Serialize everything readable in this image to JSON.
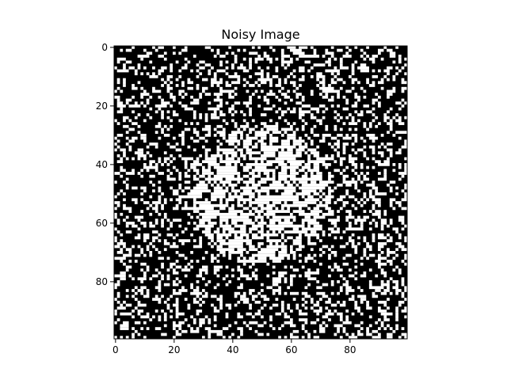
{
  "chart_data": {
    "type": "heatmap",
    "title": "Noisy Image",
    "xlabel": "",
    "ylabel": "",
    "rows": 100,
    "cols": 100,
    "colormap": [
      "#000000",
      "#ffffff"
    ],
    "value_range": [
      0,
      1
    ],
    "xlim": [
      -0.5,
      99.5
    ],
    "ylim": [
      99.5,
      -0.5
    ],
    "x_ticks": [
      0,
      20,
      40,
      60,
      80
    ],
    "y_ticks": [
      0,
      20,
      40,
      60,
      80
    ],
    "x_tick_labels": [
      "0",
      "20",
      "40",
      "60",
      "80"
    ],
    "y_tick_labels": [
      "0",
      "20",
      "40",
      "60",
      "80"
    ],
    "grid": false,
    "content": {
      "shape": "circle",
      "center_row": 50,
      "center_col": 50,
      "radius": 24,
      "inside_value": 1,
      "outside_value": 0,
      "flip_probability": 0.3
    }
  }
}
